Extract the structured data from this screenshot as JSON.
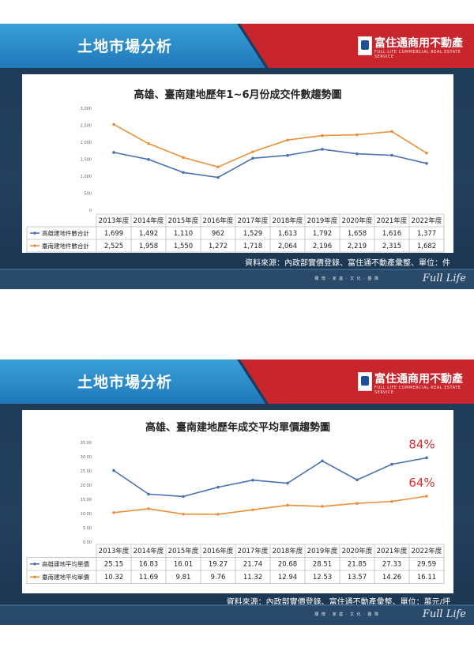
{
  "header": {
    "title": "土地市場分析",
    "logo_text": "富住通商用不動產",
    "logo_sub": "FULL LIFE COMMERCIAL REAL ESTATE SERVICE"
  },
  "footer": {
    "menu": "關 懷 · 家 庭 · 文 化 · 團 隊",
    "brand": "Full Life"
  },
  "colors": {
    "series_blue": "#4a72b0",
    "series_orange": "#e8913a",
    "annotation_red": "#d9302f"
  },
  "chart_data": [
    {
      "type": "line",
      "title": "高雄、臺南建地歷年1~6月份成交件數趨勢圖",
      "categories": [
        "2013年度",
        "2014年度",
        "2015年度",
        "2016年度",
        "2017年度",
        "2018年度",
        "2019年度",
        "2020年度",
        "2021年度",
        "2022年度"
      ],
      "yticks": [
        "3,000",
        "2,500",
        "2,000",
        "1,500",
        "1,000",
        "500",
        "0"
      ],
      "ylim": [
        0,
        3000
      ],
      "grid": false,
      "legend": "table-left",
      "series": [
        {
          "name": "高雄建地件數合計",
          "color": "#4a72b0",
          "values": [
            1699,
            1492,
            1110,
            962,
            1529,
            1613,
            1792,
            1658,
            1616,
            1377
          ],
          "labels": [
            "1,699",
            "1,492",
            "1,110",
            "962",
            "1,529",
            "1,613",
            "1,792",
            "1,658",
            "1,616",
            "1,377"
          ]
        },
        {
          "name": "臺南建地件數合計",
          "color": "#e8913a",
          "values": [
            2525,
            1958,
            1550,
            1272,
            1718,
            2064,
            2196,
            2219,
            2315,
            1682
          ],
          "labels": [
            "2,525",
            "1,958",
            "1,550",
            "1,272",
            "1,718",
            "2,064",
            "2,196",
            "2,219",
            "2,315",
            "1,682"
          ]
        }
      ],
      "source": "資料來源：內政部實價登錄、富住通不動產彙整、單位：件"
    },
    {
      "type": "line",
      "title": "高雄、臺南建地歷年成交平均單價趨勢圖",
      "categories": [
        "2013年度",
        "2014年度",
        "2015年度",
        "2016年度",
        "2017年度",
        "2018年度",
        "2019年度",
        "2020年度",
        "2021年度",
        "2022年度"
      ],
      "yticks": [
        "35.00",
        "30.00",
        "25.00",
        "20.00",
        "15.00",
        "10.00",
        "5.00",
        "0.00"
      ],
      "ylim": [
        0,
        35
      ],
      "grid": false,
      "legend": "table-left",
      "series": [
        {
          "name": "高雄建地平均單價",
          "color": "#4a72b0",
          "values": [
            25.15,
            16.83,
            16.01,
            19.27,
            21.74,
            20.68,
            28.51,
            21.85,
            27.33,
            29.59
          ],
          "labels": [
            "25.15",
            "16.83",
            "16.01",
            "19.27",
            "21.74",
            "20.68",
            "28.51",
            "21.85",
            "27.33",
            "29.59"
          ]
        },
        {
          "name": "臺南建地平均單價",
          "color": "#e8913a",
          "values": [
            10.32,
            11.69,
            9.81,
            9.76,
            11.32,
            12.94,
            12.53,
            13.57,
            14.26,
            16.11
          ],
          "labels": [
            "10.32",
            "11.69",
            "9.81",
            "9.76",
            "11.32",
            "12.94",
            "12.53",
            "13.57",
            "14.26",
            "16.11"
          ]
        }
      ],
      "annotations": [
        "84%",
        "64%"
      ],
      "source": "資料來源：內政部實價登錄、富住通不動產彙整、單位：萬元/坪"
    }
  ]
}
